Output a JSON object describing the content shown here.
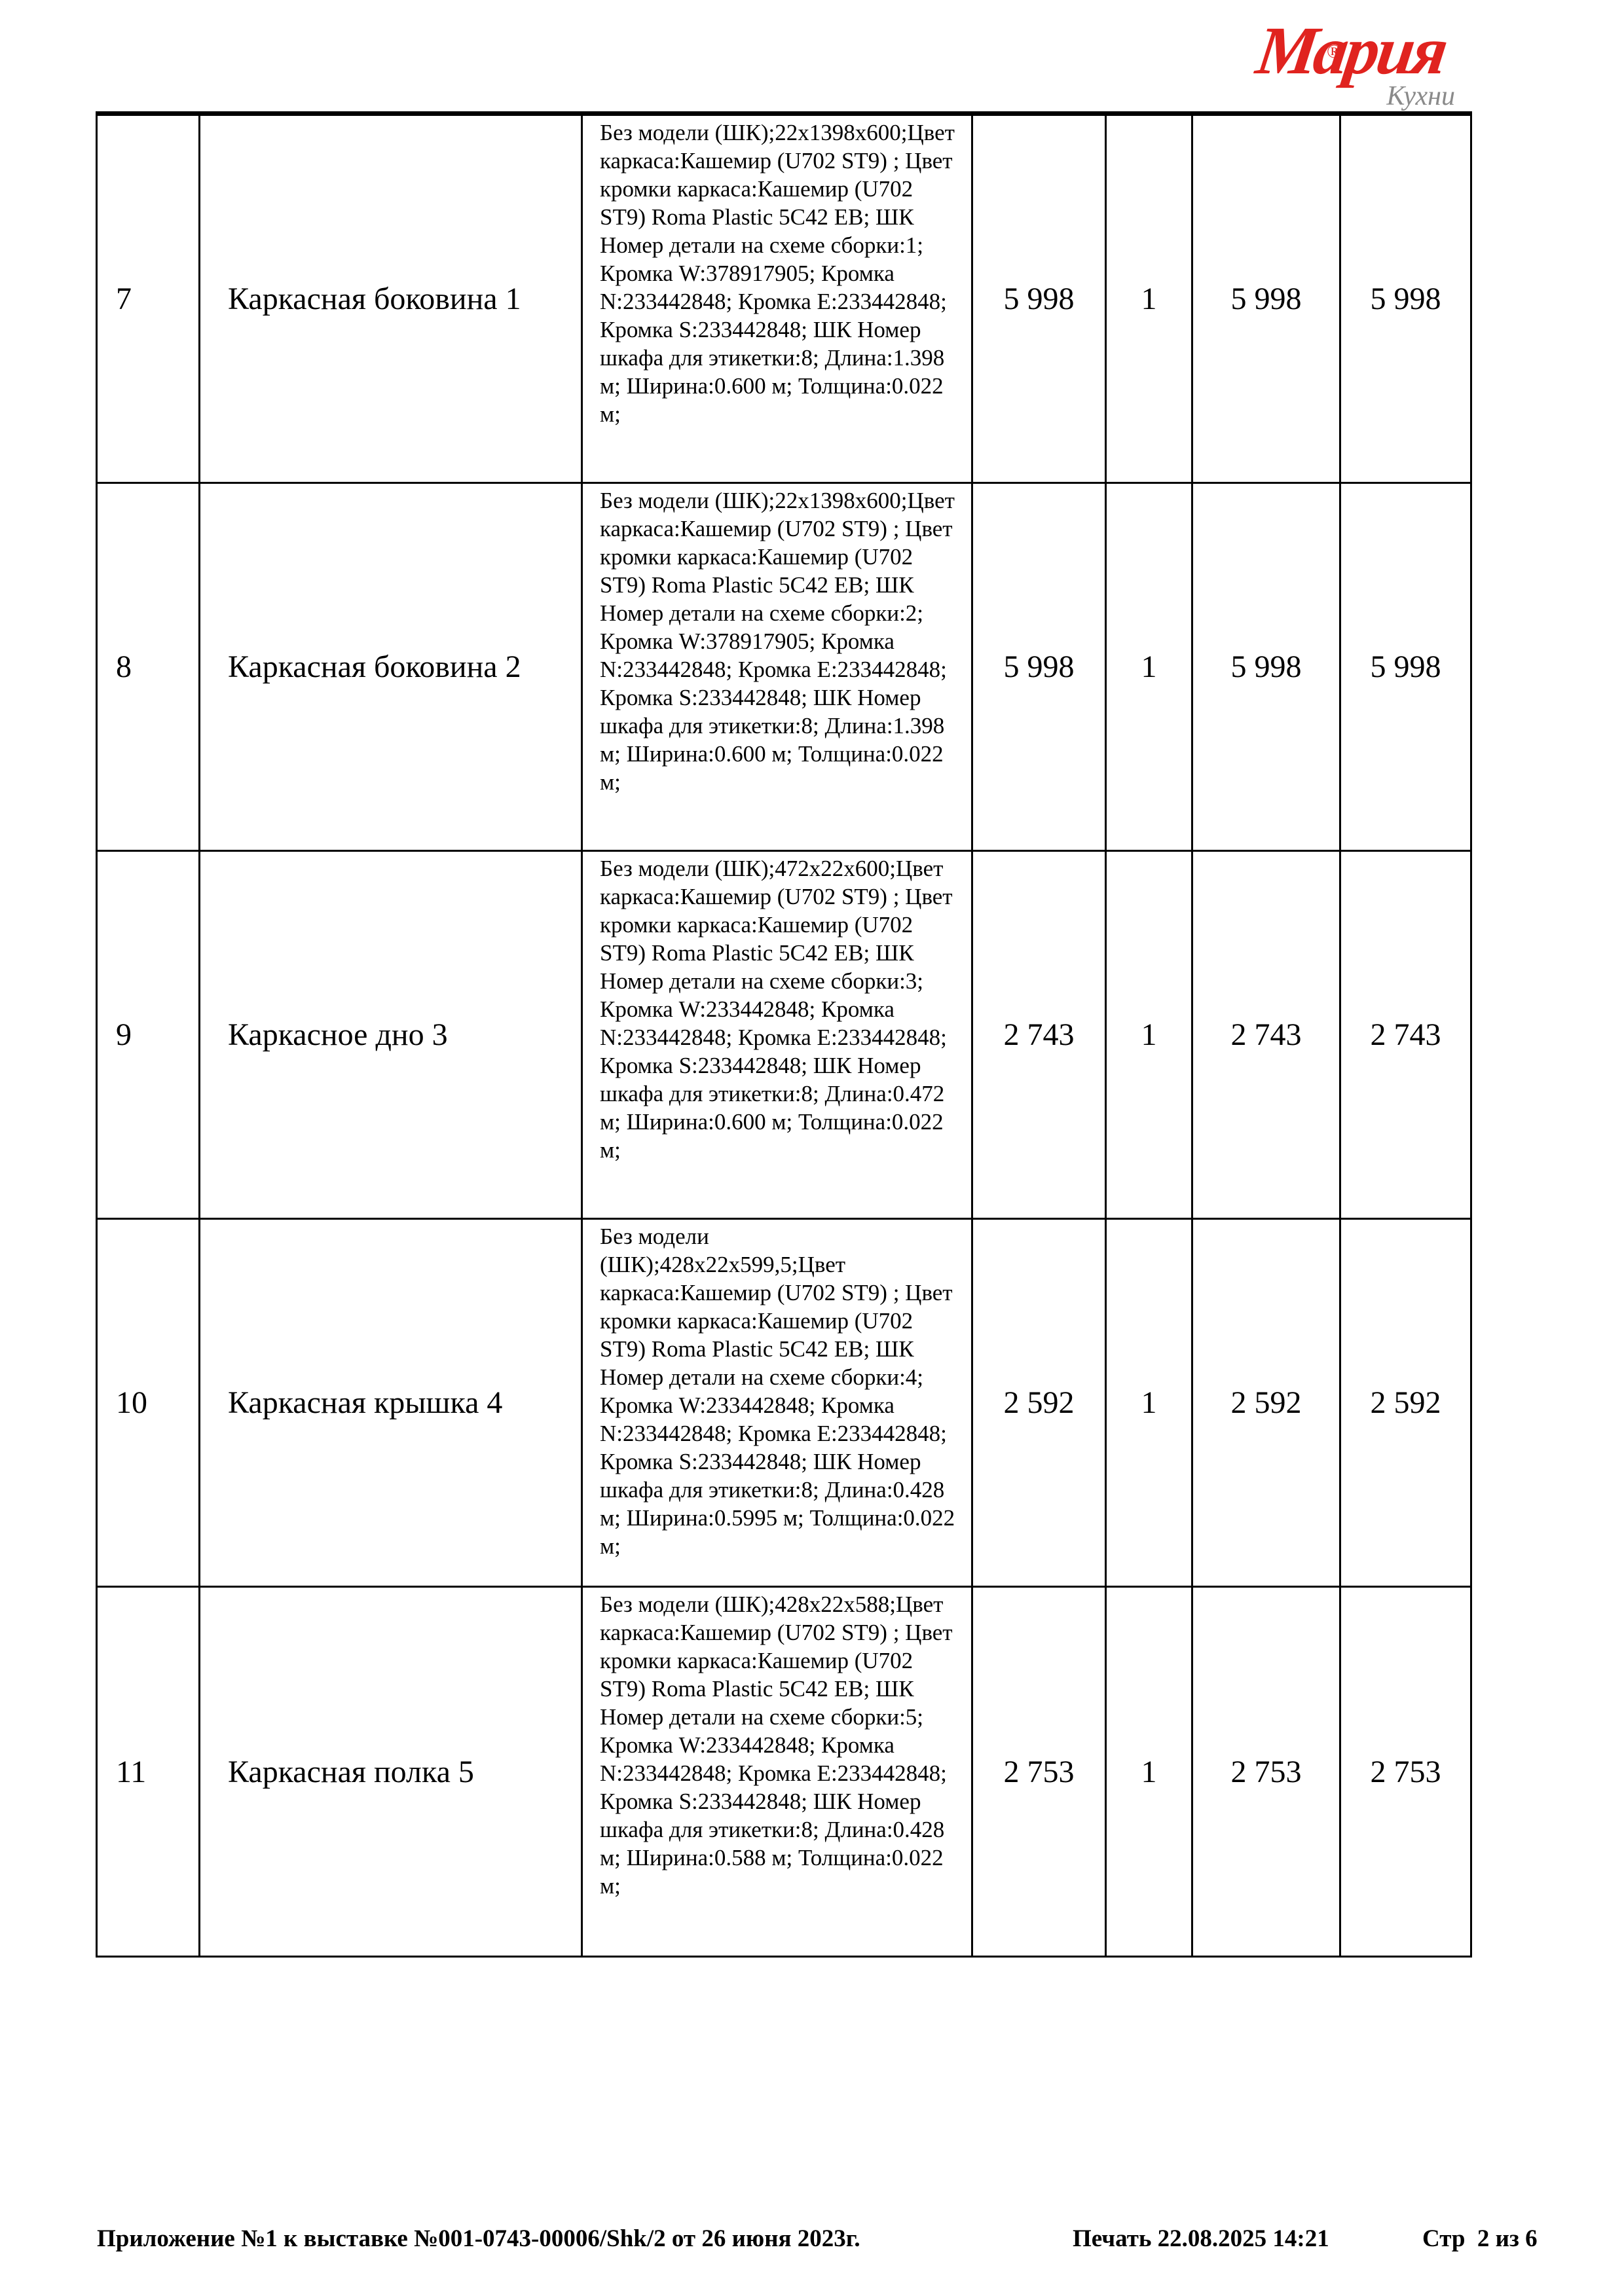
{
  "logo": {
    "brand": "Мария",
    "registered": "®",
    "subtitle": "Кухни",
    "brand_color": "#e0231f",
    "subtitle_color": "#8a8a8a"
  },
  "table": {
    "rows": [
      {
        "num": "7",
        "name": "Каркасная боковина 1",
        "description": "Без модели (ШК);22х1398х600;Цвет каркаса:Кашемир (U702 ST9) ; Цвет кромки каркаса:Кашемир (U702 ST9) Roma Plastic 5C42 EB; ШК Номер детали на схеме сборки:1; Кромка W:378917905; Кромка N:233442848; Кромка E:233442848; Кромка S:233442848; ШК Номер шкафа для этикетки:8; Длина:1.398 м; Ширина:0.600 м; Толщина:0.022 м;",
        "price": "5 998",
        "qty": "1",
        "sum": "5 998",
        "total": "5 998"
      },
      {
        "num": "8",
        "name": "Каркасная боковина 2",
        "description": "Без модели (ШК);22х1398х600;Цвет каркаса:Кашемир (U702 ST9) ; Цвет кромки каркаса:Кашемир (U702 ST9) Roma Plastic 5C42 EB; ШК Номер детали на схеме сборки:2; Кромка W:378917905; Кромка N:233442848; Кромка E:233442848; Кромка S:233442848; ШК Номер шкафа для этикетки:8; Длина:1.398 м; Ширина:0.600 м; Толщина:0.022 м;",
        "price": "5 998",
        "qty": "1",
        "sum": "5 998",
        "total": "5 998"
      },
      {
        "num": "9",
        "name": "Каркасное дно 3",
        "description": "Без модели (ШК);472х22х600;Цвет каркаса:Кашемир (U702 ST9) ; Цвет кромки каркаса:Кашемир (U702 ST9) Roma Plastic 5C42 EB; ШК Номер детали на схеме сборки:3; Кромка W:233442848; Кромка N:233442848; Кромка E:233442848; Кромка S:233442848; ШК Номер шкафа для этикетки:8; Длина:0.472 м; Ширина:0.600 м; Толщина:0.022 м;",
        "price": "2 743",
        "qty": "1",
        "sum": "2 743",
        "total": "2 743"
      },
      {
        "num": "10",
        "name": "Каркасная крышка 4",
        "description": "Без модели (ШК);428х22х599,5;Цвет каркаса:Кашемир (U702 ST9) ; Цвет кромки каркаса:Кашемир (U702 ST9) Roma Plastic 5C42 EB; ШК Номер детали на схеме сборки:4; Кромка W:233442848; Кромка N:233442848; Кромка E:233442848; Кромка S:233442848; ШК Номер шкафа для этикетки:8; Длина:0.428 м; Ширина:0.5995 м; Толщина:0.022 м;",
        "price": "2 592",
        "qty": "1",
        "sum": "2 592",
        "total": "2 592"
      },
      {
        "num": "11",
        "name": "Каркасная полка 5",
        "description": "Без модели (ШК);428х22х588;Цвет каркаса:Кашемир (U702 ST9) ; Цвет кромки каркаса:Кашемир (U702 ST9) Roma Plastic 5C42 EB; ШК Номер детали на схеме сборки:5; Кромка W:233442848; Кромка N:233442848; Кромка E:233442848; Кромка S:233442848; ШК Номер шкафа для этикетки:8; Длина:0.428 м; Ширина:0.588 м; Толщина:0.022 м;",
        "price": "2 753",
        "qty": "1",
        "sum": "2 753",
        "total": "2 753"
      }
    ]
  },
  "footer": {
    "left": "Приложение №1 к выставке №001-0743-00006/Shk/2 от 26 июня 2023г.",
    "print": "Печать 22.08.2025 14:21",
    "page": "Стр  2 из 6"
  }
}
